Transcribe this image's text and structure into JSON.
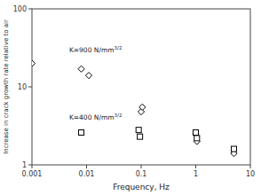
{
  "chart_data": {
    "type": "scatter",
    "title": "",
    "xlabel": "Frequency, Hz",
    "ylabel": "Increase in crack growth rate relative to air",
    "log": true,
    "grid": false,
    "xlim": [
      0.001,
      10
    ],
    "ylim": [
      1,
      100
    ],
    "xticks": [
      0.001,
      0.01,
      0.1,
      1,
      10
    ],
    "yticks": [
      1,
      10,
      100
    ],
    "series": [
      {
        "marker": "diamond",
        "color": "#000000",
        "x": [
          0.001,
          0.008,
          0.011,
          0.1,
          0.105,
          1.0,
          1.05,
          5.0
        ],
        "values": [
          20,
          17,
          14,
          4.8,
          5.5,
          2.5,
          2.0,
          1.4
        ]
      },
      {
        "marker": "square",
        "color": "#000000",
        "x": [
          0.008,
          0.09,
          0.095,
          1.0,
          1.05,
          5.0
        ],
        "values": [
          2.6,
          2.8,
          2.3,
          2.6,
          2.2,
          1.6
        ]
      }
    ],
    "annotations": [
      {
        "text": "K=900 N/mm",
        "sup": "3/2",
        "x": 0.0048,
        "y": 28
      },
      {
        "text": "K=400 N/mm",
        "sup": "3/2",
        "x": 0.0048,
        "y": 3.8
      }
    ]
  }
}
